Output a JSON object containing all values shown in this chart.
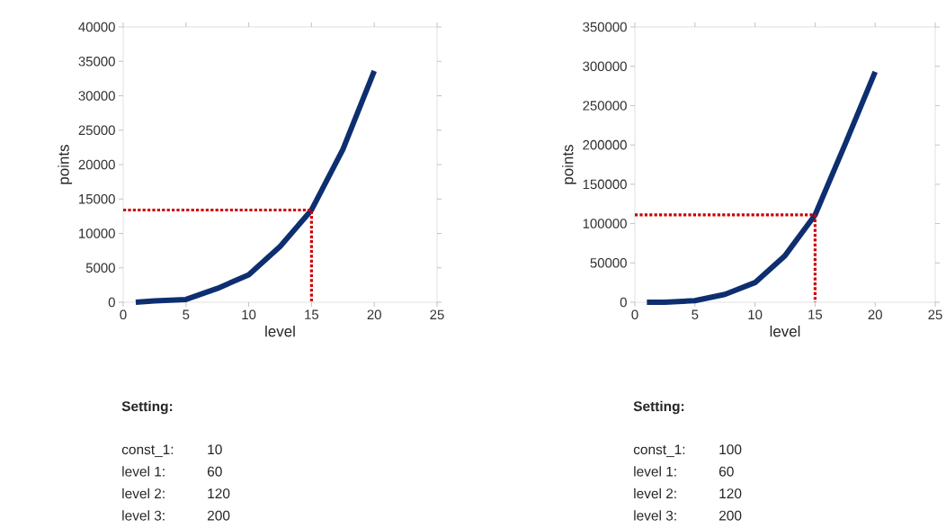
{
  "chart_data": [
    {
      "type": "line",
      "xlabel": "level",
      "ylabel": "points",
      "xlim": [
        0,
        25
      ],
      "ylim": [
        0,
        40000
      ],
      "xticks": [
        0,
        5,
        10,
        15,
        20,
        25
      ],
      "yticks": [
        0,
        5000,
        10000,
        15000,
        20000,
        25000,
        30000,
        35000,
        40000
      ],
      "grid": false,
      "marker": "none",
      "series": [
        {
          "x": [
            1,
            2.5,
            5,
            7.5,
            10,
            12.5,
            15,
            17.5,
            20
          ],
          "values": [
            0,
            200,
            400,
            2000,
            4000,
            8100,
            13400,
            22200,
            33600
          ],
          "color": "#0d2f70",
          "line_style": "solid"
        },
        {
          "x": [
            0,
            15,
            15
          ],
          "values": [
            13400,
            13400,
            0
          ],
          "color": "#cc0000",
          "line_style": "dotted"
        }
      ],
      "annotations": [
        "Setting:",
        "const_1:",
        "10",
        "level 1:",
        "60",
        "level 2:",
        "120",
        "level 3:",
        "200"
      ]
    },
    {
      "type": "line",
      "xlabel": "level",
      "ylabel": "points",
      "xlim": [
        0,
        25
      ],
      "ylim": [
        0,
        350000
      ],
      "xticks": [
        0,
        5,
        10,
        15,
        20,
        25
      ],
      "yticks": [
        0,
        50000,
        100000,
        150000,
        200000,
        250000,
        300000,
        350000
      ],
      "grid": false,
      "marker": "none",
      "series": [
        {
          "x": [
            1,
            2.5,
            5,
            7.5,
            10,
            12.5,
            15,
            17.5,
            20
          ],
          "values": [
            0,
            0,
            2000,
            10000,
            25000,
            59300,
            111000,
            200800,
            293000
          ],
          "color": "#0d2f70",
          "line_style": "solid"
        },
        {
          "x": [
            0,
            15,
            15
          ],
          "values": [
            111000,
            111000,
            0
          ],
          "color": "#cc0000",
          "line_style": "dotted"
        }
      ],
      "annotations": [
        "Setting:",
        "const_1:",
        "100",
        "level 1:",
        "60",
        "level 2:",
        "120",
        "level 3:",
        "200"
      ]
    }
  ]
}
